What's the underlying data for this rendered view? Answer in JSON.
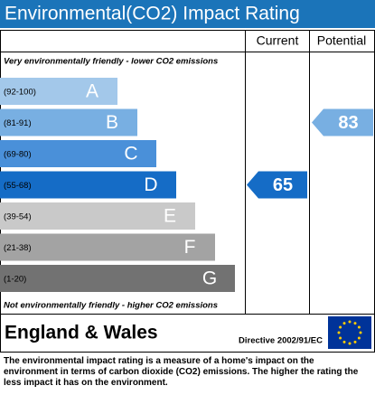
{
  "title": "Environmental(CO2) Impact Rating",
  "columns": [
    "Current",
    "Potential"
  ],
  "top_note": "Very environmentally friendly - lower CO2 emissions",
  "bottom_note": "Not environmentally friendly - higher CO2 emissions",
  "bands": [
    {
      "range": "(92-100)",
      "letter": "A",
      "color": "#a3c8ea"
    },
    {
      "range": "(81-91)",
      "letter": "B",
      "color": "#78afe2"
    },
    {
      "range": "(69-80)",
      "letter": "C",
      "color": "#4a90d9"
    },
    {
      "range": "(55-68)",
      "letter": "D",
      "color": "#156cc6"
    },
    {
      "range": "(39-54)",
      "letter": "E",
      "color": "#c9c9c9"
    },
    {
      "range": "(21-38)",
      "letter": "F",
      "color": "#a3a3a3"
    },
    {
      "range": "(1-20)",
      "letter": "G",
      "color": "#727272"
    }
  ],
  "current": 65,
  "potential": 83,
  "region": "England & Wales",
  "directive": "Directive 2002/91/EC",
  "description": "The environmental impact rating is a measure of a home's impact on the environment in terms of carbon dioxide (CO2) emissions. The higher the rating the less impact it has on the environment."
}
